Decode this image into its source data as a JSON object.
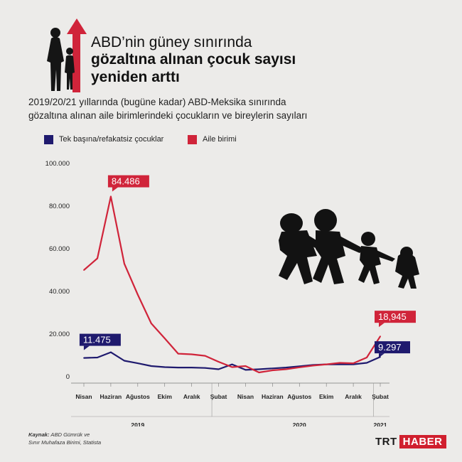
{
  "header": {
    "title_line1": "ABD’nin güney sınırında",
    "title_line2": "gözaltına alınan çocuk sayısı",
    "title_line3": "yeniden arttı",
    "subtitle_line1": "2019/20/21 yıllarında (bugüne kadar) ABD-Meksika sınırında",
    "subtitle_line2": "gözaltına alınan aile birimlerindeki çocukların ve bireylerin sayıları",
    "icon": "arrow-up-icon"
  },
  "legend": {
    "unaccompanied": "Tek başına/refakatsiz çocuklar",
    "family": "Aile birimi"
  },
  "colors": {
    "unaccompanied": "#1f1a6e",
    "family": "#d0243a",
    "background": "#ecebe9"
  },
  "chart_data": {
    "type": "line",
    "x": [
      "2019-04",
      "2019-05",
      "2019-06",
      "2019-07",
      "2019-08",
      "2019-09",
      "2019-10",
      "2019-11",
      "2019-12",
      "2020-01",
      "2020-02",
      "2020-03",
      "2020-04",
      "2020-05",
      "2020-06",
      "2020-07",
      "2020-08",
      "2020-09",
      "2020-10",
      "2020-11",
      "2020-12",
      "2021-01",
      "2021-02"
    ],
    "tick_labels": [
      "Nisan",
      "Haziran",
      "Ağustos",
      "Ekim",
      "Aralık",
      "Şubat",
      "Nisan",
      "Haziran",
      "Ağustos",
      "Ekim",
      "Aralık",
      "Şubat"
    ],
    "tick_months": [
      "2019-04",
      "2019-06",
      "2019-08",
      "2019-10",
      "2019-12",
      "2020-02",
      "2020-04",
      "2020-06",
      "2020-08",
      "2020-10",
      "2020-12",
      "2021-02"
    ],
    "year_labels": [
      {
        "label": "2019",
        "month": "2019-08"
      },
      {
        "label": "2020",
        "month": "2020-08"
      },
      {
        "label": "2021",
        "month": "2021-02"
      }
    ],
    "ylim": [
      0,
      100000
    ],
    "yticks": [
      0,
      20000,
      40000,
      60000,
      80000,
      100000
    ],
    "ytick_labels": [
      "0",
      "20.000",
      "40.000",
      "60.000",
      "80.000",
      "100.000"
    ],
    "grid": false,
    "legend_position": "top-left",
    "series": [
      {
        "name": "Tek başına/refakatsiz çocuklar",
        "key": "unaccompanied",
        "values": [
          8800,
          9000,
          11475,
          7500,
          6300,
          5000,
          4500,
          4300,
          4300,
          4100,
          3500,
          5800,
          3200,
          3500,
          3900,
          4300,
          4900,
          5500,
          5800,
          5800,
          5800,
          6500,
          9297
        ]
      },
      {
        "name": "Aile birimi",
        "key": "family",
        "values": [
          50000,
          55500,
          84486,
          53000,
          38500,
          25000,
          18000,
          10800,
          10500,
          9800,
          7000,
          4500,
          5000,
          2000,
          3000,
          3500,
          4400,
          5200,
          5800,
          6500,
          6300,
          9000,
          18945
        ]
      }
    ],
    "annotations": [
      {
        "text": "84.486",
        "series": "family",
        "month": "2019-06"
      },
      {
        "text": "11.475",
        "series": "unaccompanied",
        "month": "2019-06"
      },
      {
        "text": "18,945",
        "series": "family",
        "month": "2021-02"
      },
      {
        "text": "9.297",
        "series": "unaccompanied",
        "month": "2021-02"
      }
    ]
  },
  "footer": {
    "source_label": "Kaynak:",
    "source_line1": "ABD Gümrük ve",
    "source_line2": "Sınır Muhafaza Birimi, Statista",
    "brand_trt": "TRT",
    "brand_haber": "HABER"
  }
}
